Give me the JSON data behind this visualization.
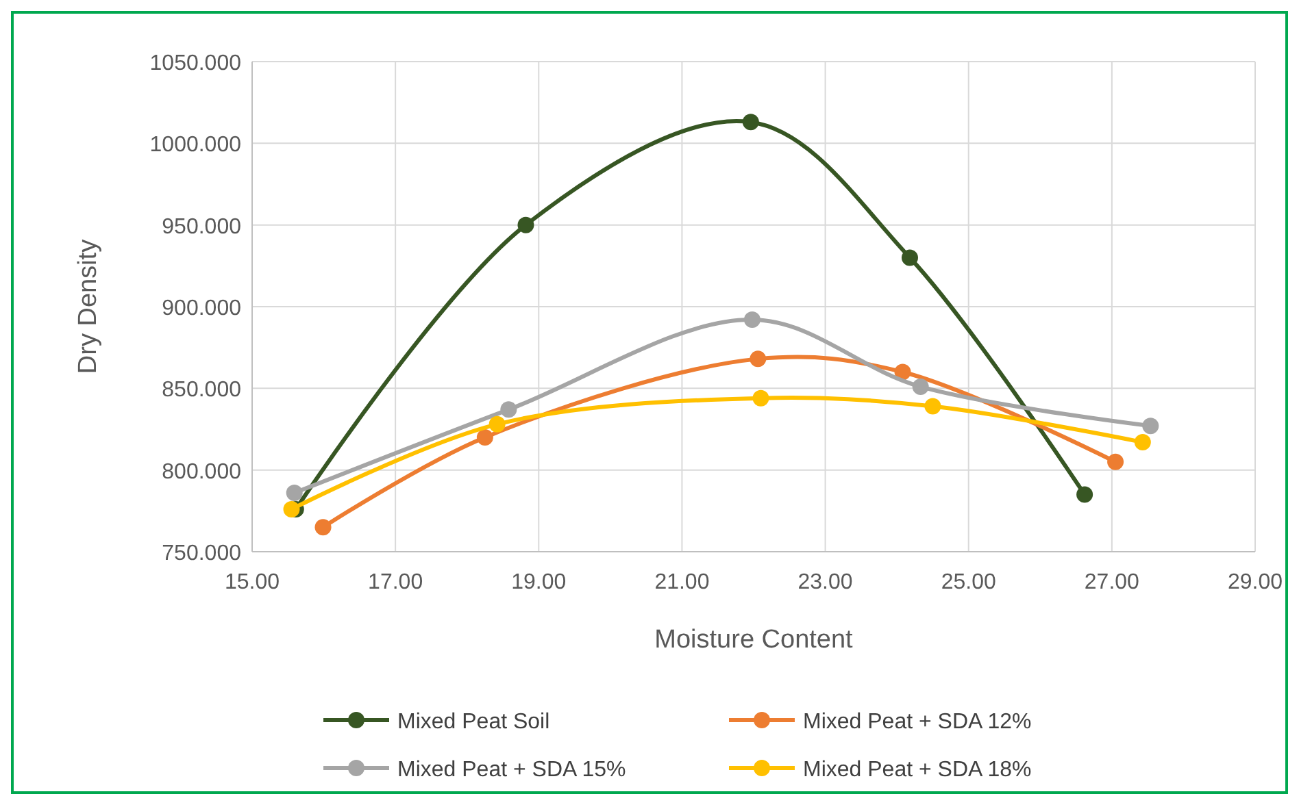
{
  "chart_data": {
    "type": "line",
    "xlabel": "Moisture Content",
    "ylabel": "Dry Density",
    "xlim": [
      15,
      29
    ],
    "ylim": [
      750,
      1050
    ],
    "xticks": [
      {
        "value": 15,
        "label": "15.00"
      },
      {
        "value": 17,
        "label": "17.00"
      },
      {
        "value": 19,
        "label": "19.00"
      },
      {
        "value": 21,
        "label": "21.00"
      },
      {
        "value": 23,
        "label": "23.00"
      },
      {
        "value": 25,
        "label": "25.00"
      },
      {
        "value": 27,
        "label": "27.00"
      },
      {
        "value": 29,
        "label": "29.00"
      }
    ],
    "yticks": [
      {
        "value": 750,
        "label": "750.000"
      },
      {
        "value": 800,
        "label": "800.000"
      },
      {
        "value": 850,
        "label": "850.000"
      },
      {
        "value": 900,
        "label": "900.000"
      },
      {
        "value": 950,
        "label": "950.000"
      },
      {
        "value": 1000,
        "label": "1000.000"
      },
      {
        "value": 1050,
        "label": "1050.000"
      }
    ],
    "grid": true,
    "legend": "bottom",
    "marker": "circle",
    "line_style": "solid",
    "series": [
      {
        "name": "Mixed Peat Soil",
        "color": "#375623",
        "x": [
          15.61,
          18.82,
          21.96,
          24.18,
          26.62
        ],
        "values": [
          776,
          950,
          1013,
          930,
          785
        ]
      },
      {
        "name": "Mixed Peat + SDA 12%",
        "color": "#ed7d31",
        "x": [
          15.99,
          18.25,
          22.06,
          24.08,
          27.05
        ],
        "values": [
          765,
          820,
          868,
          860,
          805
        ]
      },
      {
        "name": "Mixed Peat + SDA 15%",
        "color": "#a5a5a5",
        "x": [
          15.59,
          18.58,
          21.98,
          24.33,
          27.54
        ],
        "values": [
          786,
          837,
          892,
          851,
          827
        ]
      },
      {
        "name": "Mixed Peat + SDA 18%",
        "color": "#ffc000",
        "x": [
          15.55,
          18.42,
          22.1,
          24.5,
          27.43
        ],
        "values": [
          776,
          828,
          844,
          839,
          817
        ]
      }
    ]
  }
}
